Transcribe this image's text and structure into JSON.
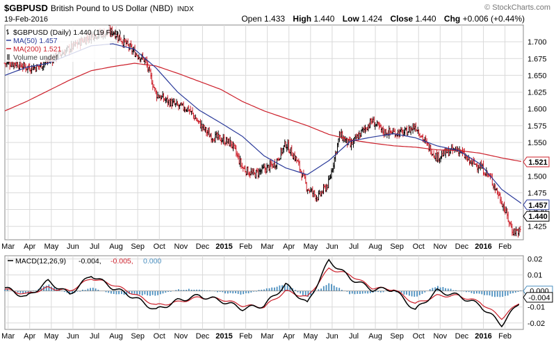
{
  "header": {
    "symbol": "$GBPUSD",
    "name": "British Pound to US Dollar (NBD)",
    "exchange": "INDX",
    "date": "19-Feb-2016",
    "brand": "© StockCharts.com",
    "open_label": "Open",
    "open": "1.433",
    "high_label": "High",
    "high": "1.440",
    "low_label": "Low",
    "low": "1.424",
    "close_label": "Close",
    "close": "1.440",
    "chg_label": "Chg",
    "chg": "+0.006 (+0.44%)"
  },
  "chart_data": [
    {
      "type": "line",
      "title": "$GBPUSD (Daily) 1.440 (19 Feb)",
      "legend": [
        {
          "label": "$GBPUSD (Daily) 1.440 (19 Feb)",
          "color": "#000000"
        },
        {
          "label": "MA(50) 1.457",
          "color": "#2a3a9a"
        },
        {
          "label": "MA(200) 1.521",
          "color": "#cc1f2a"
        },
        {
          "label": "Volume undef",
          "color": "#777777"
        }
      ],
      "ylim": [
        1.405,
        1.725
      ],
      "yticks": [
        "1.700",
        "1.675",
        "1.650",
        "1.625",
        "1.600",
        "1.575",
        "1.550",
        "1.525",
        "1.500",
        "1.475",
        "1.450",
        "1.425"
      ],
      "ytick_values": [
        1.7,
        1.675,
        1.65,
        1.625,
        1.6,
        1.575,
        1.55,
        1.525,
        1.5,
        1.475,
        1.45,
        1.425
      ],
      "xlim": [
        0,
        24
      ],
      "xticks": [
        "Mar",
        "Apr",
        "May",
        "Jun",
        "Jul",
        "Aug",
        "Sep",
        "Oct",
        "Nov",
        "Dec",
        "2015",
        "Feb",
        "Mar",
        "Apr",
        "May",
        "Jun",
        "Jul",
        "Aug",
        "Sep",
        "Oct",
        "Nov",
        "Dec",
        "2016",
        "Feb"
      ],
      "bold_xticks": [
        "2015",
        "2016"
      ],
      "price_series": {
        "name": "$GBPUSD",
        "months": [
          0,
          0.5,
          1,
          1.5,
          2,
          2.5,
          3,
          3.5,
          4,
          4.5,
          5,
          5.5,
          6,
          6.5,
          7,
          7.5,
          8,
          8.5,
          9,
          9.5,
          10,
          10.5,
          11,
          11.5,
          12,
          12.5,
          13,
          13.5,
          14,
          14.5,
          15,
          15.5,
          16,
          16.5,
          17,
          17.5,
          18,
          18.5,
          19,
          19.5,
          20,
          20.5,
          21,
          21.5,
          22,
          22.5,
          23,
          23.5
        ],
        "values": [
          1.668,
          1.668,
          1.662,
          1.662,
          1.672,
          1.68,
          1.69,
          1.7,
          1.71,
          1.712,
          1.715,
          1.7,
          1.684,
          1.672,
          1.622,
          1.612,
          1.604,
          1.6,
          1.578,
          1.56,
          1.555,
          1.548,
          1.512,
          1.502,
          1.51,
          1.518,
          1.548,
          1.524,
          1.482,
          1.468,
          1.49,
          1.562,
          1.545,
          1.565,
          1.582,
          1.566,
          1.565,
          1.564,
          1.575,
          1.548,
          1.528,
          1.536,
          1.54,
          1.521,
          1.515,
          1.496,
          1.462,
          1.418
        ]
      },
      "ma50": {
        "name": "MA(50)",
        "months": [
          0,
          1,
          2,
          3,
          4,
          5,
          6,
          7,
          8,
          9,
          10,
          11,
          12,
          13,
          14,
          15,
          16,
          17,
          18,
          19,
          20,
          21,
          22,
          23,
          24
        ],
        "values": [
          1.65,
          1.662,
          1.668,
          1.681,
          1.694,
          1.697,
          1.689,
          1.661,
          1.625,
          1.598,
          1.579,
          1.559,
          1.53,
          1.512,
          1.502,
          1.523,
          1.552,
          1.558,
          1.563,
          1.557,
          1.545,
          1.538,
          1.518,
          1.48,
          1.457
        ]
      },
      "ma200": {
        "name": "MA(200)",
        "months": [
          0,
          1,
          2,
          3,
          4,
          5,
          6,
          7,
          8,
          9,
          10,
          11,
          12,
          13,
          14,
          15,
          16,
          17,
          18,
          19,
          20,
          21,
          22,
          23,
          24
        ],
        "values": [
          1.597,
          1.611,
          1.627,
          1.643,
          1.657,
          1.663,
          1.668,
          1.664,
          1.653,
          1.641,
          1.629,
          1.611,
          1.597,
          1.586,
          1.575,
          1.562,
          1.554,
          1.549,
          1.545,
          1.543,
          1.539,
          1.538,
          1.534,
          1.527,
          1.521
        ]
      },
      "value_labels": [
        {
          "label": "1.521",
          "value": 1.521,
          "color": "#cc1f2a"
        },
        {
          "label": "1.457",
          "value": 1.457,
          "color": "#2a3a9a"
        },
        {
          "label": "1.440",
          "value": 1.44,
          "color": "#000000"
        }
      ]
    },
    {
      "type": "line",
      "title": "MACD(12,26,9)",
      "legend": [
        {
          "label": "MACD(12,26,9)",
          "color": "#000000"
        },
        {
          "label": "-0.004,",
          "color": "#000000"
        },
        {
          "label": "-0.005,",
          "color": "#cc1f2a"
        },
        {
          "label": "0.000",
          "color": "#4b8fbf"
        }
      ],
      "ylim": [
        -0.024,
        0.022
      ],
      "yticks": [
        "0.02",
        "0.01",
        "0.000",
        "-0.01",
        "-0.02"
      ],
      "ytick_values": [
        0.02,
        0.01,
        0.0,
        -0.01,
        -0.02
      ],
      "macd": {
        "months": [
          0,
          1,
          2,
          3,
          4,
          5,
          6,
          7,
          8,
          9,
          10,
          11,
          12,
          13,
          14,
          15,
          16,
          17,
          18,
          19,
          20,
          21,
          22,
          23,
          24
        ],
        "values": [
          0.002,
          -0.004,
          0.006,
          -0.002,
          0.01,
          0.002,
          -0.004,
          -0.012,
          -0.006,
          -0.003,
          -0.006,
          -0.011,
          -0.009,
          0.004,
          -0.008,
          0.019,
          0.008,
          0.001,
          0.001,
          -0.012,
          0.0,
          -0.003,
          -0.009,
          -0.021,
          -0.004
        ]
      },
      "signal": {
        "months": [
          0,
          1,
          2,
          3,
          4,
          5,
          6,
          7,
          8,
          9,
          10,
          11,
          12,
          13,
          14,
          15,
          16,
          17,
          18,
          19,
          20,
          21,
          22,
          23,
          24
        ],
        "values": [
          0.001,
          -0.002,
          0.002,
          0.0,
          0.008,
          0.004,
          -0.002,
          -0.009,
          -0.007,
          -0.004,
          -0.005,
          -0.009,
          -0.01,
          0.0,
          -0.004,
          0.014,
          0.01,
          0.002,
          0.001,
          -0.008,
          -0.003,
          -0.003,
          -0.007,
          -0.017,
          -0.005
        ]
      },
      "value_labels": [
        {
          "label": "0.000",
          "value": 0.0,
          "color": "#4b8fbf"
        },
        {
          "label": "-0.004",
          "value": -0.004,
          "color": "#000000"
        }
      ],
      "xticks": [
        "Mar",
        "Apr",
        "May",
        "Jun",
        "Jul",
        "Aug",
        "Sep",
        "Oct",
        "Nov",
        "Dec",
        "2015",
        "Feb",
        "Mar",
        "Apr",
        "May",
        "Jun",
        "Jul",
        "Aug",
        "Sep",
        "Oct",
        "Nov",
        "Dec",
        "2016",
        "Feb"
      ]
    }
  ],
  "colors": {
    "price_up": "#000000",
    "price_down": "#cc1f2a",
    "ma50": "#2a3a9a",
    "ma200": "#cc1f2a",
    "hist": "#4b8fbf",
    "grid": "#d9d9d9",
    "border": "#888888"
  }
}
